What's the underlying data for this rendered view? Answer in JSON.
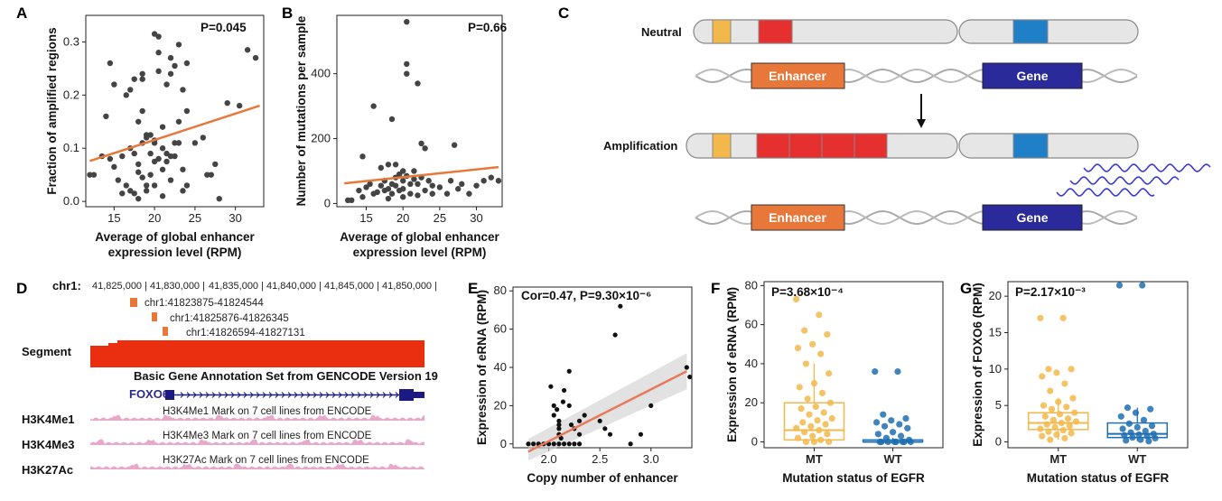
{
  "panel_labels": {
    "A": "A",
    "B": "B",
    "C": "C",
    "D": "D",
    "E": "E",
    "F": "F",
    "G": "G"
  },
  "colors": {
    "orange": "#e8783a",
    "red": "#e63030",
    "blue": "#2a2a9a",
    "blue_points": "#1f6fb2",
    "yellow": "#f2b84b",
    "pink": "#cc3d8a",
    "gray_points": "#444444"
  },
  "panelC": {
    "neutral_label": "Neutral",
    "amplification_label": "Amplification",
    "enhancer_label": "Enhancer",
    "gene_label": "Gene"
  },
  "panelD": {
    "chrom_label": "chr1:",
    "coords": [
      "41,825,000 |",
      "41,830,000 |",
      "41,835,000 |",
      "41,840,000 |",
      "41,845,000 |",
      "41,850,000 |"
    ],
    "regions": [
      "chr1:41823875-41824544",
      "chr1:41825876-41826345",
      "chr1:41826594-41827131"
    ],
    "segment_label": "Segment",
    "gencode_label": "Basic Gene Annotation Set from GENCODE Version 19",
    "gene_name": "FOXO6",
    "tracks": [
      {
        "name": "H3K4Me1",
        "desc": "H3K4Me1 Mark on 7 cell lines from ENCODE"
      },
      {
        "name": "H3K4Me3",
        "desc": "H3K4Me3 Mark on 7 cell lines from ENCODE"
      },
      {
        "name": "H3K27Ac",
        "desc": "H3K27Ac Mark on 7 cell lines from ENCODE"
      }
    ]
  },
  "chart_data": [
    {
      "id": "A",
      "type": "scatter",
      "xlabel": "Average of global enhancer",
      "xlabel2": "expression level (RPM)",
      "ylabel": "Fraction of amplified regions",
      "annotation": "P=0.045",
      "xlim": [
        11.5,
        33.5
      ],
      "ylim": [
        -0.01,
        0.35
      ],
      "xticks": [
        15,
        20,
        25,
        30
      ],
      "yticks": [
        0.0,
        0.1,
        0.2,
        0.3
      ],
      "ytick_labels": [
        "0.0",
        "0.1",
        "0.2",
        "0.3"
      ],
      "fit": {
        "x": [
          12,
          33
        ],
        "y": [
          0.076,
          0.18
        ]
      },
      "points": [
        [
          12,
          0.05
        ],
        [
          12.5,
          0.05
        ],
        [
          13.5,
          0.085
        ],
        [
          14,
          0.16
        ],
        [
          14.5,
          0.26
        ],
        [
          14.5,
          0.08
        ],
        [
          15,
          0.065
        ],
        [
          15,
          0.22
        ],
        [
          15.5,
          0.04
        ],
        [
          16,
          0.015
        ],
        [
          16,
          0.085
        ],
        [
          16.5,
          0.2
        ],
        [
          16.5,
          0.03
        ],
        [
          17,
          0.1
        ],
        [
          17,
          0.21
        ],
        [
          17,
          0.02
        ],
        [
          17.5,
          0.23
        ],
        [
          17.5,
          0.09
        ],
        [
          17.5,
          0.015
        ],
        [
          18,
          0.055
        ],
        [
          18,
          0.15
        ],
        [
          18,
          0.005
        ],
        [
          18,
          0.07
        ],
        [
          18.5,
          0.23
        ],
        [
          18.5,
          0.24
        ],
        [
          18.5,
          0.11
        ],
        [
          18.5,
          0.17
        ],
        [
          18.5,
          0.045
        ],
        [
          19,
          0.02
        ],
        [
          19,
          0.125
        ],
        [
          19,
          0.03
        ],
        [
          19,
          0.12
        ],
        [
          19.5,
          0.125
        ],
        [
          19.5,
          0.09
        ],
        [
          19.5,
          0.05
        ],
        [
          20,
          0.315
        ],
        [
          20,
          0.075
        ],
        [
          20,
          0.11
        ],
        [
          20,
          0.115
        ],
        [
          20,
          0.03
        ],
        [
          20.5,
          0.31
        ],
        [
          20.5,
          0.28
        ],
        [
          20.5,
          0.08
        ],
        [
          20.5,
          0.245
        ],
        [
          21,
          0.14
        ],
        [
          21,
          0.1
        ],
        [
          21,
          0.06
        ],
        [
          21,
          0.01
        ],
        [
          21.5,
          0.09
        ],
        [
          21.5,
          0.075
        ],
        [
          21.5,
          0.22
        ],
        [
          22,
          0.27
        ],
        [
          22,
          0.24
        ],
        [
          22,
          0.085
        ],
        [
          22,
          0.04
        ],
        [
          22.5,
          0.255
        ],
        [
          22.5,
          0.11
        ],
        [
          22.5,
          0.085
        ],
        [
          23,
          0.295
        ],
        [
          23,
          0.15
        ],
        [
          23,
          0.11
        ],
        [
          23.5,
          0.21
        ],
        [
          23.5,
          0.02
        ],
        [
          23.5,
          0.06
        ],
        [
          24,
          0.26
        ],
        [
          24,
          0.17
        ],
        [
          24,
          0.03
        ],
        [
          25,
          0.11
        ],
        [
          26,
          0.12
        ],
        [
          26.5,
          0.05
        ],
        [
          27,
          0.05
        ],
        [
          27.5,
          0.07
        ],
        [
          28,
          0.005
        ],
        [
          29,
          0.185
        ],
        [
          30.5,
          0.18
        ],
        [
          31.5,
          0.285
        ],
        [
          32.5,
          0.27
        ]
      ]
    },
    {
      "id": "B",
      "type": "scatter",
      "xlabel": "Average of global enhancer",
      "xlabel2": "expression level (RPM)",
      "ylabel": "Number of mutations per sample",
      "annotation": "P=0.66",
      "xlim": [
        11,
        33.5
      ],
      "ylim": [
        -10,
        580
      ],
      "xticks": [
        15,
        20,
        25,
        30
      ],
      "yticks": [
        0,
        200,
        400
      ],
      "ytick_labels": [
        "0",
        "200",
        "400"
      ],
      "fit": {
        "x": [
          12,
          33
        ],
        "y": [
          62,
          112
        ]
      },
      "points": [
        [
          12.5,
          10
        ],
        [
          13,
          10
        ],
        [
          14,
          40
        ],
        [
          14.5,
          145
        ],
        [
          14.5,
          20
        ],
        [
          15,
          50
        ],
        [
          15.5,
          60
        ],
        [
          16,
          300
        ],
        [
          16,
          30
        ],
        [
          16.5,
          35
        ],
        [
          17,
          110
        ],
        [
          17,
          55
        ],
        [
          17.5,
          40
        ],
        [
          17.5,
          70
        ],
        [
          18,
          120
        ],
        [
          18,
          45
        ],
        [
          18,
          15
        ],
        [
          18.5,
          260
        ],
        [
          18.5,
          60
        ],
        [
          18.5,
          30
        ],
        [
          19,
          80
        ],
        [
          19,
          120
        ],
        [
          19,
          55
        ],
        [
          19.5,
          90
        ],
        [
          19.5,
          40
        ],
        [
          20,
          100
        ],
        [
          20,
          45
        ],
        [
          20,
          70
        ],
        [
          20,
          20
        ],
        [
          20.5,
          430
        ],
        [
          20.5,
          560
        ],
        [
          20.5,
          400
        ],
        [
          20.5,
          85
        ],
        [
          21,
          60
        ],
        [
          21,
          30
        ],
        [
          21.5,
          100
        ],
        [
          21.5,
          75
        ],
        [
          22,
          370
        ],
        [
          22,
          60
        ],
        [
          22,
          25
        ],
        [
          22.5,
          185
        ],
        [
          22.5,
          80
        ],
        [
          23,
          170
        ],
        [
          23,
          40
        ],
        [
          23.5,
          70
        ],
        [
          24,
          55
        ],
        [
          24,
          30
        ],
        [
          25,
          50
        ],
        [
          26,
          30
        ],
        [
          26.5,
          70
        ],
        [
          27,
          180
        ],
        [
          27.5,
          45
        ],
        [
          28,
          60
        ],
        [
          29,
          30
        ],
        [
          30,
          55
        ],
        [
          31,
          70
        ],
        [
          32,
          80
        ],
        [
          33,
          70
        ]
      ]
    },
    {
      "id": "E",
      "type": "scatter",
      "xlabel": "Copy number of enhancer",
      "ylabel": "Expression of eRNA (RPM)",
      "annotation": "Cor=0.47, P=9.30×10⁻⁶",
      "xlim": [
        1.65,
        3.4
      ],
      "ylim": [
        -2,
        82
      ],
      "xticks": [
        2.0,
        2.5,
        3.0
      ],
      "yticks": [
        0,
        20,
        40,
        60,
        80
      ],
      "xtick_labels": [
        "2.0",
        "2.5",
        "3.0"
      ],
      "ytick_labels": [
        "0",
        "20",
        "40",
        "60",
        "80"
      ],
      "fit": {
        "x": [
          1.8,
          3.35
        ],
        "y": [
          -4,
          38
        ]
      },
      "points": [
        [
          1.8,
          0
        ],
        [
          1.85,
          0
        ],
        [
          1.9,
          0
        ],
        [
          1.95,
          0
        ],
        [
          2.0,
          0
        ],
        [
          2.05,
          0
        ],
        [
          2.1,
          0
        ],
        [
          2.15,
          0
        ],
        [
          2.2,
          0
        ],
        [
          2.25,
          0
        ],
        [
          2.3,
          0
        ],
        [
          2.02,
          30
        ],
        [
          2.05,
          20
        ],
        [
          2.05,
          15
        ],
        [
          2.08,
          18
        ],
        [
          2.1,
          12
        ],
        [
          2.1,
          10
        ],
        [
          2.1,
          8
        ],
        [
          2.1,
          5
        ],
        [
          2.12,
          3
        ],
        [
          2.14,
          22
        ],
        [
          2.15,
          28
        ],
        [
          2.2,
          38
        ],
        [
          2.2,
          20
        ],
        [
          2.22,
          10
        ],
        [
          2.25,
          8
        ],
        [
          2.3,
          5
        ],
        [
          2.3,
          12
        ],
        [
          2.35,
          15
        ],
        [
          2.5,
          12
        ],
        [
          2.55,
          8
        ],
        [
          2.6,
          5
        ],
        [
          2.65,
          57
        ],
        [
          2.7,
          72
        ],
        [
          2.8,
          0
        ],
        [
          2.9,
          5
        ],
        [
          3.0,
          20
        ],
        [
          3.35,
          40
        ],
        [
          3.38,
          35
        ]
      ]
    },
    {
      "id": "F",
      "type": "box",
      "xlabel": "Mutation status of EGFR",
      "ylabel": "Expression of eRNA (RPM)",
      "annotation": "P=3.68×10⁻⁴",
      "categories": [
        "MT",
        "WT"
      ],
      "ylim": [
        -3,
        82
      ],
      "yticks": [
        0,
        20,
        40,
        60,
        80
      ],
      "ytick_labels": [
        "0",
        "20",
        "40",
        "60",
        "80"
      ],
      "boxes": [
        {
          "name": "MT",
          "q1": 1,
          "median": 6,
          "q3": 20,
          "whisker_low": 0,
          "whisker_high": 40
        },
        {
          "name": "WT",
          "q1": 0,
          "median": 0,
          "q3": 1,
          "whisker_low": 0,
          "whisker_high": 2
        }
      ],
      "points": {
        "MT": [
          73,
          65,
          57,
          55,
          50,
          48,
          45,
          40,
          35,
          30,
          28,
          25,
          22,
          20,
          18,
          17,
          15,
          14,
          12,
          11,
          10,
          9,
          8,
          7,
          6,
          5,
          4,
          3,
          2,
          1,
          0,
          0,
          0
        ],
        "WT": [
          36,
          36,
          14,
          12,
          11,
          10,
          9,
          8,
          7,
          5,
          4,
          3,
          2,
          1,
          0,
          0,
          0,
          0,
          0,
          0,
          0,
          0
        ]
      }
    },
    {
      "id": "G",
      "type": "box",
      "xlabel": "Mutation status of EGFR",
      "ylabel": "Expression of FOXO6 (RPM)",
      "annotation": "P=2.17×10⁻³",
      "categories": [
        "MT",
        "WT"
      ],
      "ylim": [
        -0.8,
        22
      ],
      "yticks": [
        0,
        5,
        10,
        15,
        20
      ],
      "ytick_labels": [
        "0",
        "5",
        "10",
        "15",
        "20"
      ],
      "boxes": [
        {
          "name": "MT",
          "q1": 1.7,
          "median": 2.6,
          "q3": 4,
          "whisker_low": 0.3,
          "whisker_high": 6
        },
        {
          "name": "WT",
          "q1": 0.6,
          "median": 1.1,
          "q3": 2.6,
          "whisker_low": 0.1,
          "whisker_high": 4.7
        }
      ],
      "points": {
        "MT": [
          17,
          17,
          10,
          10,
          9.5,
          9,
          8,
          7,
          6,
          5.5,
          5,
          4.8,
          4.5,
          4,
          3.8,
          3.5,
          3.2,
          3,
          2.8,
          2.6,
          2.4,
          2.2,
          2,
          1.8,
          1.6,
          1.4,
          1.2,
          1,
          0.8,
          0.5,
          0.3
        ],
        "WT": [
          21.5,
          21.5,
          4.7,
          4.5,
          4,
          3.5,
          3,
          2.5,
          2.2,
          2,
          1.8,
          1.5,
          1.3,
          1.1,
          1,
          0.9,
          0.8,
          0.6,
          0.5,
          0.3,
          0.2,
          0.1
        ]
      }
    }
  ]
}
